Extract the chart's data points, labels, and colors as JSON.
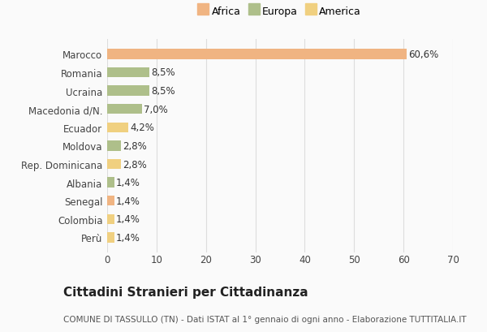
{
  "categories": [
    "Marocco",
    "Romania",
    "Ucraina",
    "Macedonia d/N.",
    "Ecuador",
    "Moldova",
    "Rep. Dominicana",
    "Albania",
    "Senegal",
    "Colombia",
    "Perù"
  ],
  "values": [
    60.6,
    8.5,
    8.5,
    7.0,
    4.2,
    2.8,
    2.8,
    1.4,
    1.4,
    1.4,
    1.4
  ],
  "labels": [
    "60,6%",
    "8,5%",
    "8,5%",
    "7,0%",
    "4,2%",
    "2,8%",
    "2,8%",
    "1,4%",
    "1,4%",
    "1,4%",
    "1,4%"
  ],
  "colors": [
    "#F0B482",
    "#AEBF8A",
    "#AEBF8A",
    "#AEBF8A",
    "#F0D080",
    "#AEBF8A",
    "#F0D080",
    "#AEBF8A",
    "#F0B482",
    "#F0D080",
    "#F0D080"
  ],
  "legend_labels": [
    "Africa",
    "Europa",
    "America"
  ],
  "legend_colors": [
    "#F0B482",
    "#AEBF8A",
    "#F0D080"
  ],
  "title": "Cittadini Stranieri per Cittadinanza",
  "subtitle": "COMUNE DI TASSULLO (TN) - Dati ISTAT al 1° gennaio di ogni anno - Elaborazione TUTTITALIA.IT",
  "xlim": [
    0,
    70
  ],
  "xticks": [
    0,
    10,
    20,
    30,
    40,
    50,
    60,
    70
  ],
  "bg_color": "#FAFAFA",
  "grid_color": "#DDDDDD",
  "title_fontsize": 11,
  "subtitle_fontsize": 7.5,
  "tick_fontsize": 8.5,
  "label_fontsize": 8.5,
  "legend_fontsize": 9
}
